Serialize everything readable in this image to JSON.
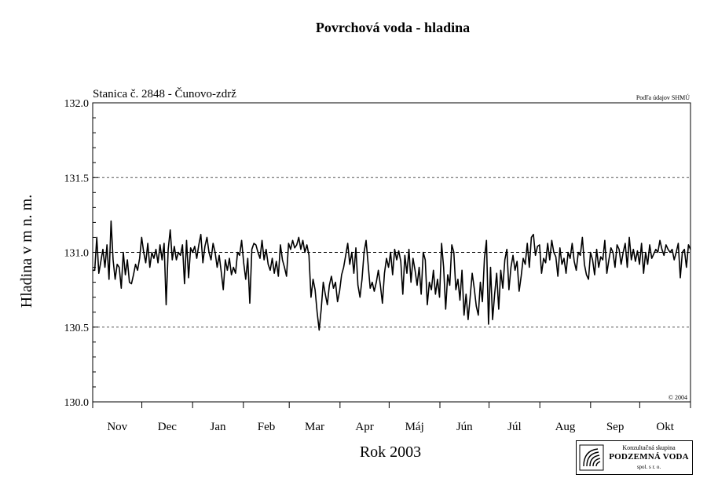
{
  "chart_data": {
    "type": "line",
    "title": "Povrchová voda - hladina",
    "station_label": "Stanica č. 2848 - Čunovo-zdrž",
    "source_note": "Podľa údajov SHMÚ",
    "copyright": "© 2004",
    "xlabel": "Rok 2003",
    "ylabel": "Hladina v m n. m.",
    "ylim": [
      130.0,
      132.0
    ],
    "yticks": [
      "130.0",
      "130.5",
      "131.0",
      "131.5",
      "132.0"
    ],
    "months": [
      "Nov",
      "Dec",
      "Jan",
      "Feb",
      "Mar",
      "Apr",
      "Máj",
      "Jún",
      "Júl",
      "Aug",
      "Sep",
      "Okt"
    ],
    "x_range_days": [
      0,
      365
    ],
    "reference_lines": [
      130.5,
      131.0,
      131.5
    ],
    "grid": true,
    "series": [
      {
        "values": [
          130.88,
          130.88,
          131.1,
          130.86,
          130.94,
          131.02,
          130.9,
          131.05,
          130.82,
          131.21,
          130.95,
          130.82,
          130.92,
          130.9,
          130.76,
          131.0,
          130.85,
          130.95,
          130.8,
          130.79,
          130.85,
          130.92,
          130.88,
          130.96,
          131.1,
          131.0,
          130.93,
          131.06,
          130.9,
          131.0,
          130.96,
          131.02,
          130.93,
          131.05,
          130.95,
          131.06,
          130.65,
          131.02,
          131.15,
          130.95,
          131.04,
          130.95,
          131.0,
          130.98,
          131.05,
          130.79,
          131.08,
          130.83,
          131.03,
          131.0,
          131.04,
          130.96,
          131.05,
          131.12,
          130.93,
          131.04,
          131.1,
          131.0,
          130.95,
          131.06,
          131.0,
          130.9,
          130.98,
          130.87,
          130.75,
          130.95,
          130.88,
          130.96,
          130.85,
          130.9,
          130.86,
          131.0,
          130.98,
          131.08,
          130.93,
          130.82,
          130.96,
          130.66,
          131.02,
          131.06,
          131.05,
          131.0,
          130.96,
          131.08,
          130.95,
          131.02,
          130.92,
          130.88,
          130.96,
          130.86,
          130.94,
          130.84,
          131.05,
          130.95,
          130.9,
          130.84,
          131.06,
          131.02,
          131.08,
          131.03,
          131.05,
          131.1,
          131.02,
          131.08,
          131.0,
          131.05,
          130.98,
          130.7,
          130.82,
          130.75,
          130.6,
          130.48,
          130.62,
          130.8,
          130.72,
          130.65,
          130.78,
          130.84,
          130.76,
          130.8,
          130.67,
          130.74,
          130.85,
          130.9,
          130.98,
          131.06,
          130.92,
          131.0,
          130.86,
          131.03,
          130.78,
          130.7,
          130.82,
          131.0,
          131.08,
          130.92,
          130.76,
          130.8,
          130.74,
          130.8,
          130.88,
          130.78,
          130.66,
          130.86,
          130.96,
          130.9,
          131.0,
          130.85,
          131.02,
          130.95,
          131.01,
          130.94,
          130.72,
          130.98,
          130.86,
          131.02,
          130.8,
          130.96,
          130.88,
          130.78,
          130.9,
          130.72,
          131.0,
          130.95,
          130.65,
          130.8,
          130.75,
          130.88,
          130.72,
          130.82,
          130.7,
          131.06,
          130.9,
          130.62,
          130.85,
          130.78,
          131.05,
          131.0,
          130.75,
          130.82,
          130.68,
          130.88,
          130.58,
          130.72,
          130.55,
          130.7,
          130.86,
          130.76,
          130.64,
          130.58,
          130.8,
          130.67,
          130.96,
          131.08,
          130.52,
          130.9,
          130.55,
          130.72,
          130.86,
          130.62,
          130.88,
          130.76,
          130.95,
          131.02,
          130.75,
          130.9,
          130.98,
          130.88,
          130.94,
          130.74,
          130.84,
          130.96,
          130.92,
          131.06,
          130.9,
          131.1,
          131.12,
          130.98,
          131.04,
          131.05,
          130.86,
          130.96,
          130.93,
          131.06,
          130.95,
          131.08,
          131.0,
          130.97,
          130.84,
          131.03,
          130.92,
          130.96,
          130.86,
          131.0,
          130.96,
          131.06,
          130.94,
          130.88,
          131.0,
          130.98,
          131.1,
          130.92,
          130.85,
          130.82,
          131.0,
          130.95,
          130.85,
          131.02,
          130.9,
          130.97,
          130.95,
          131.08,
          130.86,
          130.95,
          131.03,
          131.0,
          130.9,
          131.05,
          131.02,
          130.92,
          131.0,
          131.06,
          130.9,
          131.1,
          130.95,
          131.02,
          130.94,
          131.01,
          130.92,
          131.06,
          130.86,
          131.0,
          130.92,
          131.05,
          130.96,
          130.99,
          131.02,
          131.0,
          131.08,
          131.02,
          130.98,
          131.05,
          131.02,
          131.0,
          131.02,
          130.95,
          131.0,
          131.06,
          130.83,
          131.0,
          131.02,
          130.9,
          131.05,
          131.02
        ]
      }
    ]
  },
  "logo": {
    "line1": "Konzultačná skupina",
    "line2": "PODZEMNÁ VODA",
    "line3": "spol. s r. o."
  }
}
